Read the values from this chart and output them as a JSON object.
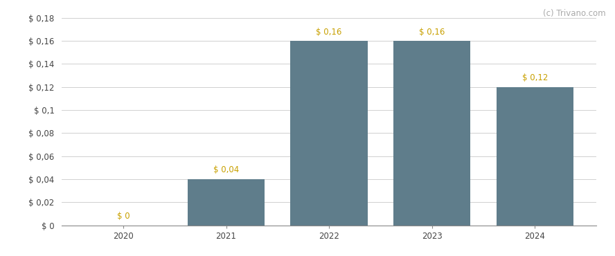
{
  "categories": [
    "2020",
    "2021",
    "2022",
    "2023",
    "2024"
  ],
  "values": [
    0.0,
    0.04,
    0.16,
    0.16,
    0.12
  ],
  "labels": [
    "$ 0",
    "$ 0,04",
    "$ 0,16",
    "$ 0,16",
    "$ 0,12"
  ],
  "bar_color": "#5f7d8b",
  "background_color": "#ffffff",
  "ylim": [
    0,
    0.18
  ],
  "yticks": [
    0.0,
    0.02,
    0.04,
    0.06,
    0.08,
    0.1,
    0.12,
    0.14,
    0.16,
    0.18
  ],
  "ytick_labels": [
    "$ 0",
    "$ 0,02",
    "$ 0,04",
    "$ 0,06",
    "$ 0,08",
    "$ 0,1",
    "$ 0,12",
    "$ 0,14",
    "$ 0,16",
    "$ 0,18"
  ],
  "watermark": "(c) Trivano.com",
  "bar_width": 0.75,
  "grid_color": "#d0d0d0",
  "label_fontsize": 8.5,
  "tick_fontsize": 8.5,
  "watermark_fontsize": 8.5,
  "label_color": "#c8a000",
  "tick_color": "#444444",
  "watermark_color": "#aaaaaa"
}
